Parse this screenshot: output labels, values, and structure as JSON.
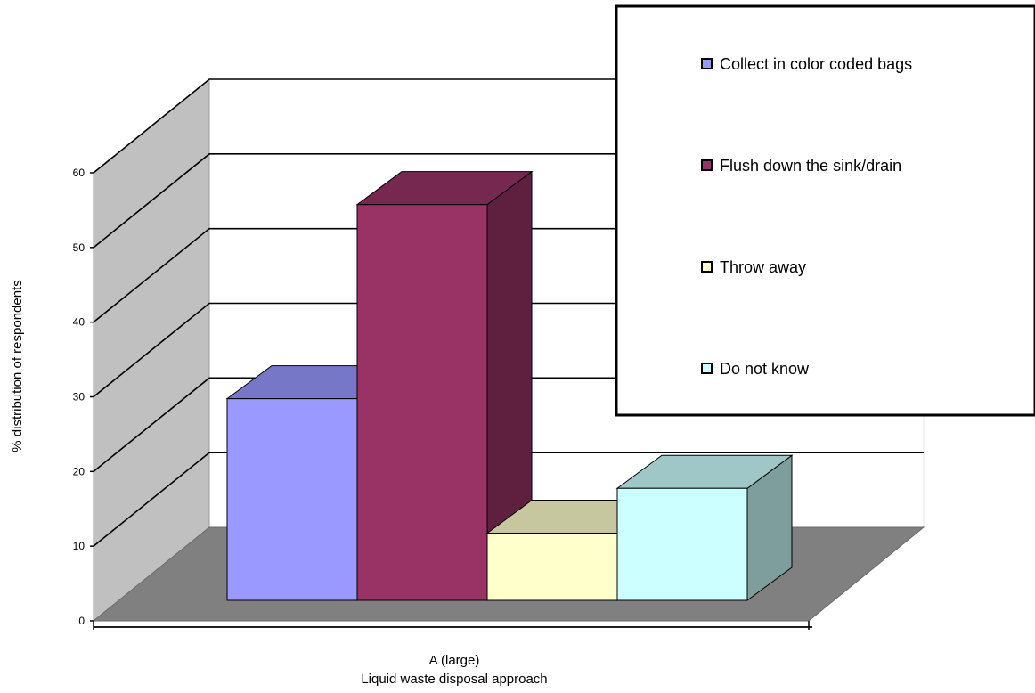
{
  "chart_data": {
    "type": "bar",
    "style": "3d-clustered-column",
    "categories": [
      "A (large)"
    ],
    "series": [
      {
        "name": "Collect in color coded bags",
        "values": [
          27
        ],
        "color": "#9999ff"
      },
      {
        "name": "Flush down the sink/drain",
        "values": [
          53
        ],
        "color": "#993366"
      },
      {
        "name": "Throw away",
        "values": [
          9
        ],
        "color": "#ffffcc"
      },
      {
        "name": "Do not know",
        "values": [
          15
        ],
        "color": "#ccffff"
      }
    ],
    "xlabel": "Liquid waste disposal approach",
    "ylabel": "% distribution of respondents",
    "ylim": [
      0,
      60
    ],
    "yticks": [
      "0",
      "10",
      "20",
      "30",
      "40",
      "50",
      "60"
    ],
    "grid": true,
    "legend": "top-right"
  },
  "colors": {
    "wall": "#c0c0c0",
    "floor": "#808080",
    "back_wall": "#ffffff",
    "grid": "#000000"
  }
}
